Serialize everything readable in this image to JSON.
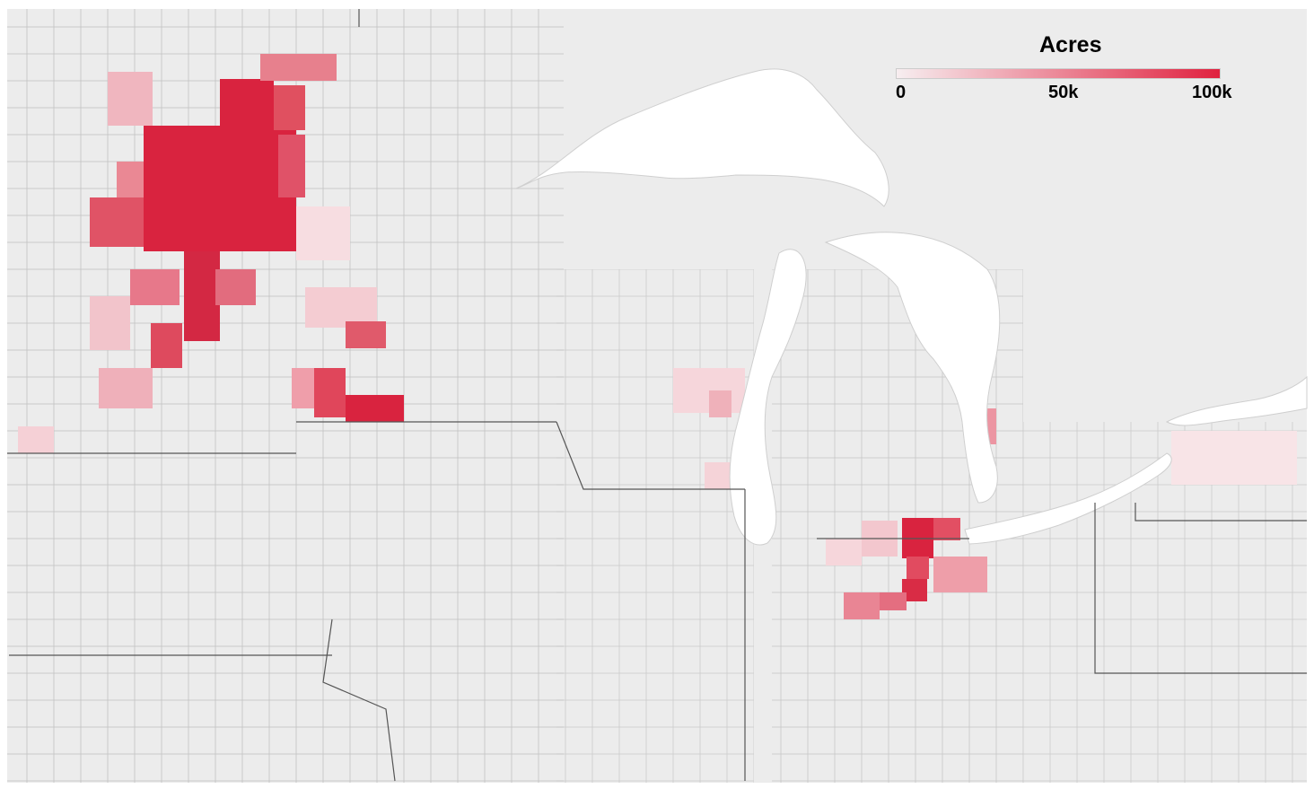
{
  "legend": {
    "title": "Acres",
    "ticks": [
      "0",
      "50k",
      "100k"
    ],
    "color_min": "#f7eef0",
    "color_max": "#e0213f"
  },
  "colors": {
    "land": "#eeeeee",
    "water": "#ffffff",
    "county_border": "#a8a8a8",
    "state_border": "#555555",
    "highlight": "#e0213f"
  },
  "layers": [
    "land",
    "great-lakes",
    "county-grid",
    "state-borders"
  ]
}
